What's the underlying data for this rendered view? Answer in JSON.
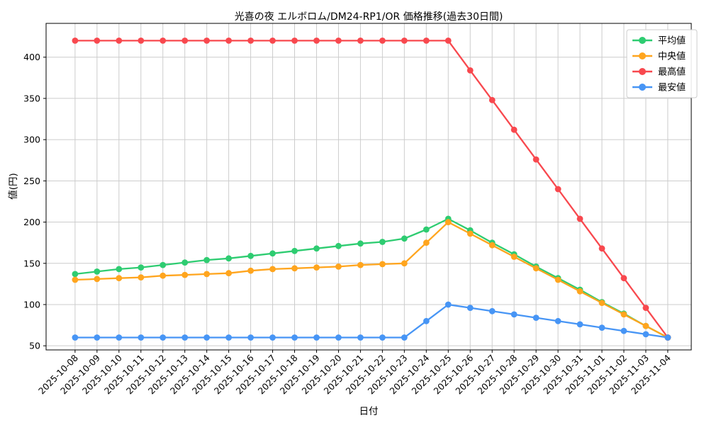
{
  "chart_data": {
    "type": "line",
    "title": "光喜の夜 エルボロム/DM24-RP1/OR 価格推移(過去30日間)",
    "xlabel": "日付",
    "ylabel": "値(円)",
    "grid": true,
    "legend_position": "upper right",
    "x": [
      "2025-10-08",
      "2025-10-09",
      "2025-10-10",
      "2025-10-11",
      "2025-10-12",
      "2025-10-13",
      "2025-10-14",
      "2025-10-15",
      "2025-10-16",
      "2025-10-17",
      "2025-10-18",
      "2025-10-19",
      "2025-10-20",
      "2025-10-21",
      "2025-10-22",
      "2025-10-23",
      "2025-10-24",
      "2025-10-25",
      "2025-10-26",
      "2025-10-27",
      "2025-10-28",
      "2025-10-29",
      "2025-10-30",
      "2025-10-31",
      "2025-11-01",
      "2025-11-02",
      "2025-11-03",
      "2025-11-04"
    ],
    "yticks": [
      50,
      100,
      150,
      200,
      250,
      300,
      350,
      400
    ],
    "ylim": [
      45,
      441
    ],
    "xlim": [
      -1.32,
      28.07
    ],
    "series": [
      {
        "key": "average",
        "name": "平均値",
        "color": "#2ecc71",
        "values": [
          137,
          140,
          143,
          145,
          148,
          151,
          154,
          156,
          159,
          162,
          165,
          168,
          171,
          174,
          176,
          180,
          191,
          204,
          190,
          175,
          161,
          146,
          132,
          118,
          103,
          89,
          74,
          60
        ]
      },
      {
        "key": "median",
        "name": "中央値",
        "color": "#ffa51e",
        "values": [
          130,
          131,
          132,
          133,
          135,
          136,
          137,
          138,
          141,
          143,
          144,
          145,
          146,
          148,
          149,
          150,
          175,
          200,
          186,
          172,
          158,
          144,
          130,
          116,
          102,
          88,
          74,
          60
        ]
      },
      {
        "key": "highest",
        "name": "最高値",
        "color": "#f8484e",
        "values": [
          420,
          420,
          420,
          420,
          420,
          420,
          420,
          420,
          420,
          420,
          420,
          420,
          420,
          420,
          420,
          420,
          420,
          420,
          384,
          348,
          312,
          276,
          240,
          204,
          168,
          132,
          96,
          60
        ]
      },
      {
        "key": "lowest",
        "name": "最安値",
        "color": "#4795f5",
        "values": [
          60,
          60,
          60,
          60,
          60,
          60,
          60,
          60,
          60,
          60,
          60,
          60,
          60,
          60,
          60,
          60,
          80,
          100,
          96,
          92,
          88,
          84,
          80,
          76,
          72,
          68,
          64,
          60
        ]
      }
    ],
    "style": {
      "grid_color": "#cccccc",
      "spine_color": "#000000",
      "legend_border_color": "#cccccc",
      "legend_bg": "#ffffff"
    }
  }
}
